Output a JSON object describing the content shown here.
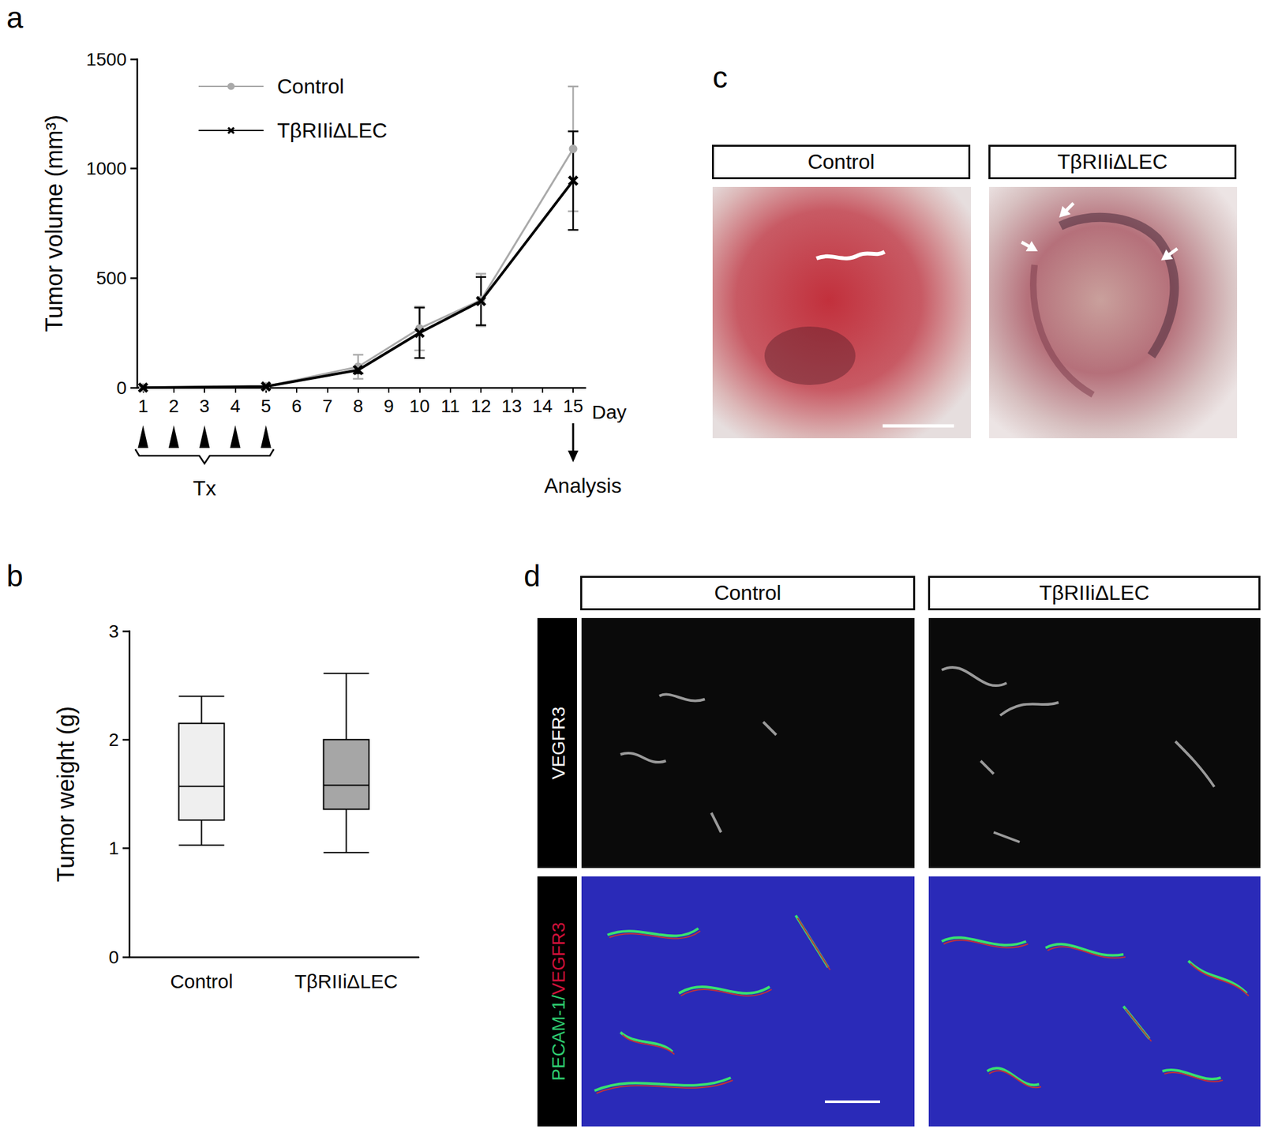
{
  "chart_data": [
    {
      "panel": "a",
      "type": "line",
      "ylabel": "Tumor volume (mm³)",
      "xlabel": "Day",
      "x": [
        1,
        5,
        8,
        10,
        12,
        15
      ],
      "series": [
        {
          "name": "Control",
          "color": "#aaaaaa",
          "marker": "circle",
          "values": [
            0,
            5,
            95,
            270,
            400,
            1090
          ],
          "errors": [
            0,
            0,
            55,
            100,
            120,
            285
          ]
        },
        {
          "name": "TβRIIiΔLEC",
          "color": "#000000",
          "marker": "x",
          "values": [
            0,
            5,
            80,
            250,
            395,
            945
          ],
          "errors": [
            0,
            0,
            15,
            115,
            110,
            225
          ]
        }
      ],
      "xlim": [
        0.8,
        15.4
      ],
      "xticks": [
        1,
        2,
        3,
        4,
        5,
        6,
        7,
        8,
        9,
        10,
        11,
        12,
        13,
        14,
        15
      ],
      "ylim": [
        0,
        1500
      ],
      "yticks": [
        0,
        500,
        1000,
        1500
      ],
      "grid": false,
      "legend": "upper left",
      "treatment_days": [
        1,
        2,
        3,
        4,
        5
      ],
      "treatment_label": "Tx",
      "analysis_day": 15,
      "analysis_label": "Analysis"
    },
    {
      "panel": "b",
      "type": "boxplot",
      "ylabel": "Tumor weight (g)",
      "categories": [
        "Control",
        "TβRIIiΔLEC"
      ],
      "values": [
        [
          1.03,
          1.26,
          1.57,
          2.15,
          2.4
        ],
        [
          0.96,
          1.36,
          1.58,
          2.0,
          2.61
        ]
      ],
      "colors": [
        "#efefef",
        "#a6a6a6"
      ],
      "ylim": [
        0,
        3
      ],
      "yticks": [
        0,
        1,
        2,
        3
      ],
      "grid": false
    }
  ],
  "images": [
    {
      "panel": "c",
      "columns": [
        "Control",
        "TβRIIiΔLEC"
      ]
    },
    {
      "panel": "d",
      "columns": [
        "Control",
        "TβRIIiΔLEC"
      ],
      "rows": [
        [
          {
            "text": "VEGFR3",
            "color": "#ffffff"
          }
        ],
        [
          {
            "text": "PECAM-1/",
            "color": "#2ecc71"
          },
          {
            "text": "VEGFR3",
            "color": "#d0103a"
          }
        ]
      ]
    }
  ]
}
